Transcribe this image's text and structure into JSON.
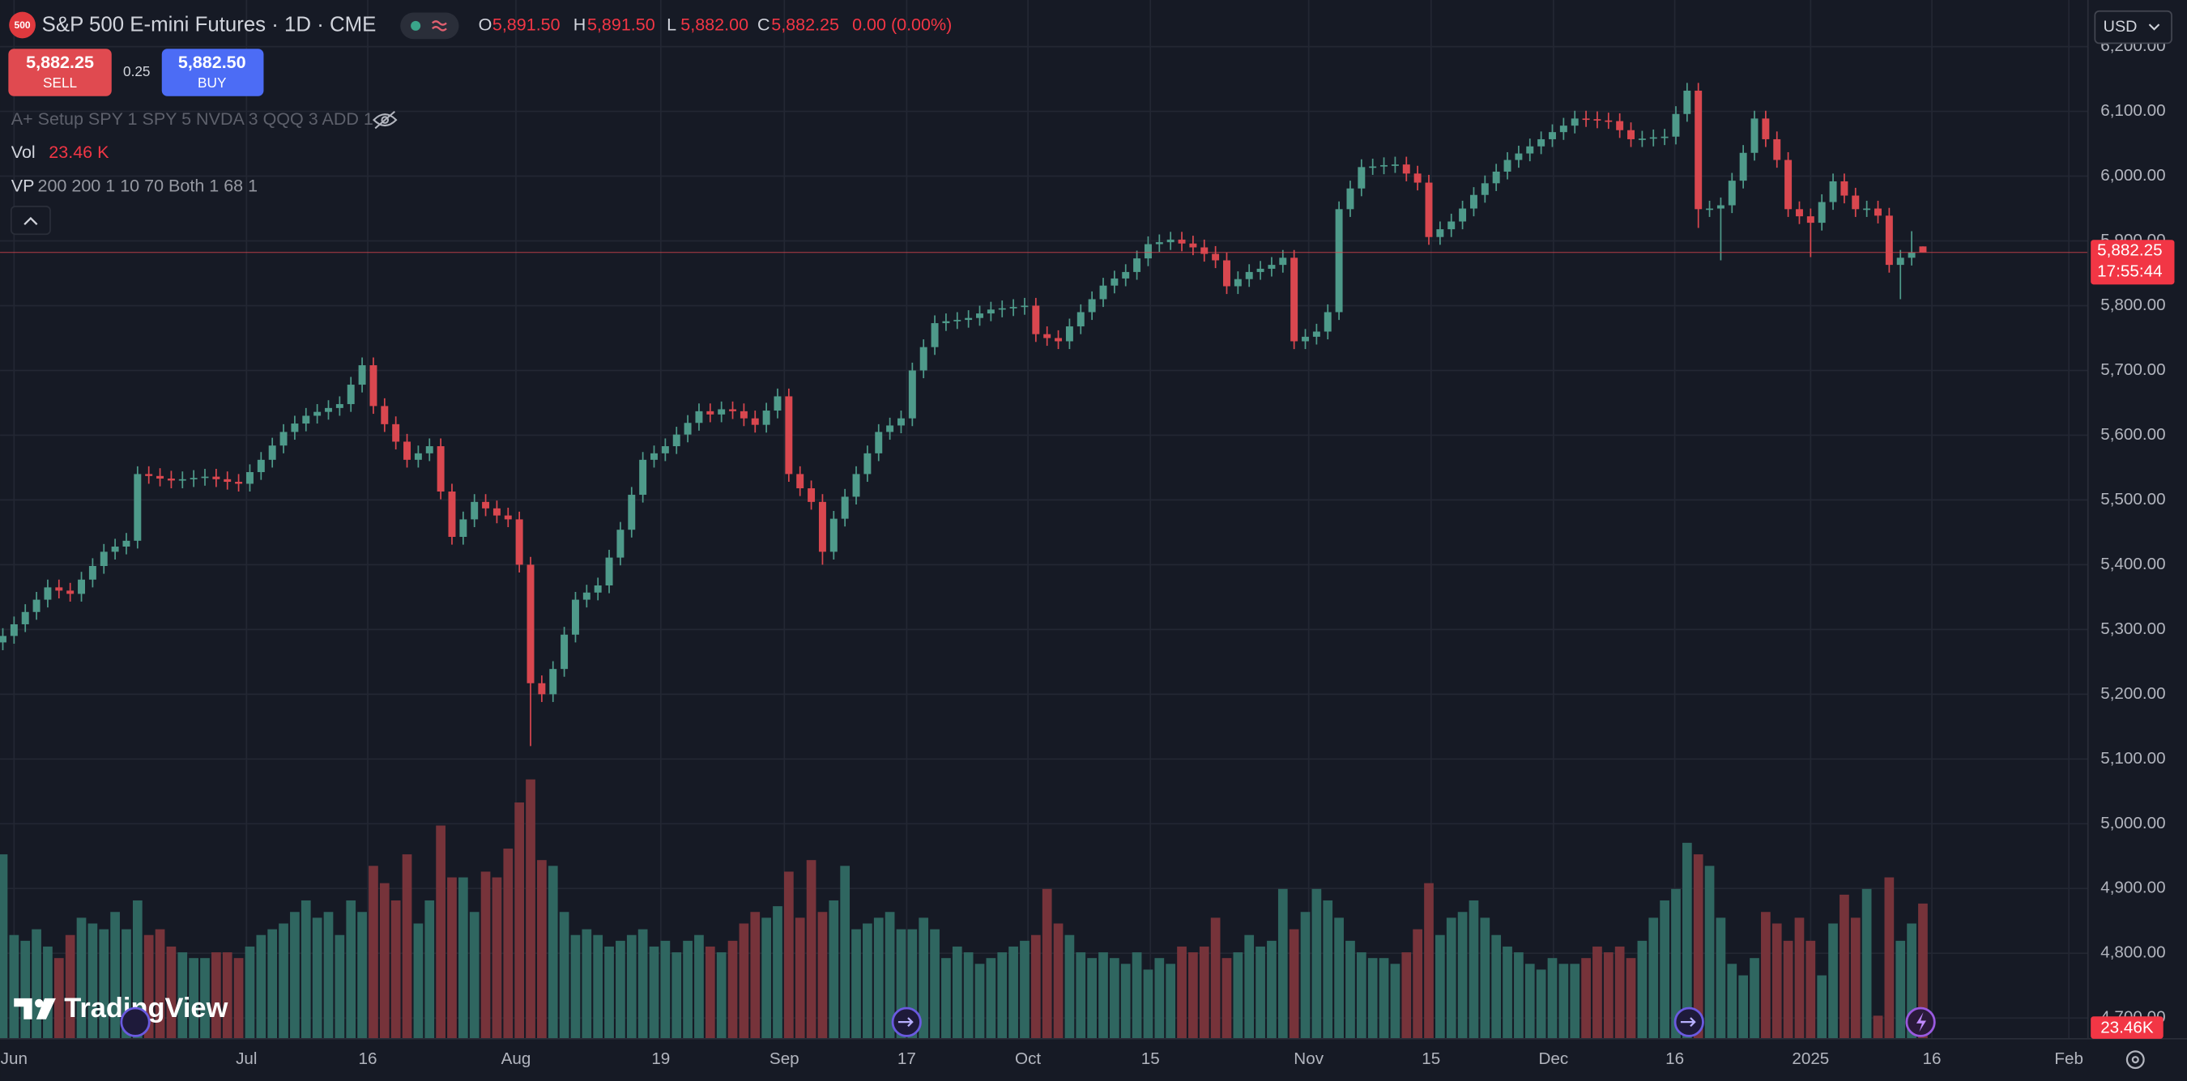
{
  "header": {
    "symbol_badge": "500",
    "title": "S&P 500 E-mini Futures · 1D · CME",
    "ohlc": [
      {
        "key": "O",
        "value": "5,891.50"
      },
      {
        "key": "H",
        "value": "5,891.50"
      },
      {
        "key": "L",
        "value": "5,882.00"
      },
      {
        "key": "C",
        "value": "5,882.25"
      }
    ],
    "change": "0.00 (0.00%)",
    "sell_price": "5,882.25",
    "sell_label": "SELL",
    "spread": "0.25",
    "buy_price": "5,882.50",
    "buy_label": "BUY",
    "currency": "USD"
  },
  "indicators": {
    "setup": "A+ Setup SPY 1 SPY 5 NVDA 3 QQQ 3 ADD 1",
    "vol_name": "Vol",
    "vol_value": "23.46 K",
    "vp_name": "VP",
    "vp_params": "200 200 1 10 70 Both 1 68 1"
  },
  "brand": "TradingView",
  "chart_data": {
    "type": "candlestick",
    "up_color": "#4e9a8a",
    "down_color": "#d9474f",
    "volume_up_color": "#2f6660",
    "volume_down_color": "#76333a",
    "grid": true,
    "ylim": [
      4668,
      6272
    ],
    "yticks": [
      {
        "value": 4700,
        "label": "4,700.00"
      },
      {
        "value": 4800,
        "label": "4,800.00"
      },
      {
        "value": 4900,
        "label": "4,900.00"
      },
      {
        "value": 5000,
        "label": "5,000.00"
      },
      {
        "value": 5100,
        "label": "5,100.00"
      },
      {
        "value": 5200,
        "label": "5,200.00"
      },
      {
        "value": 5300,
        "label": "5,300.00"
      },
      {
        "value": 5400,
        "label": "5,400.00"
      },
      {
        "value": 5500,
        "label": "5,500.00"
      },
      {
        "value": 5600,
        "label": "5,600.00"
      },
      {
        "value": 5700,
        "label": "5,700.00"
      },
      {
        "value": 5800,
        "label": "5,800.00"
      },
      {
        "value": 5900,
        "label": "5,900.00"
      },
      {
        "value": 6000,
        "label": "6,000.00"
      },
      {
        "value": 6100,
        "label": "6,100.00"
      },
      {
        "value": 6200,
        "label": "6,200.00"
      }
    ],
    "xlim": [
      -0.25,
      185.7
    ],
    "xticks": [
      {
        "value": 1.0,
        "label": "Jun"
      },
      {
        "value": 21.7,
        "label": "Jul"
      },
      {
        "value": 32.5,
        "label": "16"
      },
      {
        "value": 45.7,
        "label": "Aug"
      },
      {
        "value": 58.6,
        "label": "19"
      },
      {
        "value": 69.6,
        "label": "Sep"
      },
      {
        "value": 80.5,
        "label": "17"
      },
      {
        "value": 91.3,
        "label": "Oct"
      },
      {
        "value": 102.2,
        "label": "15"
      },
      {
        "value": 116.3,
        "label": "Nov"
      },
      {
        "value": 127.2,
        "label": "15"
      },
      {
        "value": 138.1,
        "label": "Dec"
      },
      {
        "value": 148.9,
        "label": "16"
      },
      {
        "value": 161.0,
        "label": "2025"
      },
      {
        "value": 171.8,
        "label": "16"
      },
      {
        "value": 184.0,
        "label": "Feb"
      }
    ],
    "volume_lim": [
      0,
      45
    ],
    "last_price_label": "5,882.25",
    "countdown": "17:55:44",
    "volume_label": "23.46K",
    "open": [
      5280,
      5290,
      5308,
      5327,
      5346,
      5365,
      5360,
      5355,
      5377,
      5398,
      5420,
      5428,
      5437,
      5540,
      5537,
      5533,
      5530,
      5532,
      5534,
      5536,
      5532,
      5528,
      5525,
      5543,
      5562,
      5584,
      5605,
      5618,
      5630,
      5636,
      5642,
      5648,
      5678,
      5708,
      5645,
      5617,
      5590,
      5562,
      5572,
      5583,
      5513,
      5443,
      5470,
      5497,
      5487,
      5476,
      5470,
      5400,
      5217,
      5200,
      5239,
      5292,
      5346,
      5357,
      5368,
      5411,
      5454,
      5508,
      5562,
      5572,
      5583,
      5601,
      5619,
      5637,
      5632,
      5640,
      5637,
      5626,
      5616,
      5638,
      5660,
      5540,
      5518,
      5497,
      5420,
      5471,
      5505,
      5540,
      5572,
      5605,
      5615,
      5626,
      5700,
      5736,
      5773,
      5776,
      5778,
      5781,
      5788,
      5794,
      5796,
      5798,
      5800,
      5756,
      5750,
      5745,
      5768,
      5790,
      5810,
      5831,
      5842,
      5852,
      5873,
      5895,
      5898,
      5902,
      5896,
      5890,
      5880,
      5870,
      5830,
      5841,
      5852,
      5857,
      5863,
      5874,
      5745,
      5752,
      5760,
      5790,
      5949,
      5981,
      6014,
      6015,
      6017,
      6018,
      6004,
      5990,
      5906,
      5918,
      5930,
      5950,
      5971,
      5989,
      6007,
      6025,
      6035,
      6046,
      6057,
      6068,
      6078,
      6089,
      6088,
      6086,
      6085,
      6071,
      6057,
      6058,
      6060,
      6061,
      6096,
      6132,
      5949,
      5950,
      5955,
      5993,
      6036,
      6089,
      6057,
      6025,
      5949,
      5938,
      5928,
      5960,
      5992,
      5970,
      5949,
      5950,
      5939,
      5863,
      5874,
      5891.5
    ],
    "high": [
      5302,
      5320,
      5339,
      5358,
      5377,
      5377,
      5372,
      5389,
      5410,
      5432,
      5440,
      5449,
      5552,
      5552,
      5549,
      5545,
      5544,
      5546,
      5548,
      5548,
      5544,
      5540,
      5555,
      5574,
      5596,
      5617,
      5630,
      5642,
      5648,
      5654,
      5660,
      5690,
      5720,
      5720,
      5657,
      5629,
      5602,
      5584,
      5595,
      5595,
      5525,
      5482,
      5509,
      5509,
      5499,
      5488,
      5482,
      5412,
      5229,
      5251,
      5304,
      5358,
      5369,
      5380,
      5423,
      5466,
      5520,
      5574,
      5584,
      5595,
      5613,
      5631,
      5649,
      5649,
      5652,
      5652,
      5649,
      5638,
      5650,
      5672,
      5672,
      5552,
      5530,
      5509,
      5483,
      5517,
      5552,
      5584,
      5617,
      5627,
      5638,
      5712,
      5748,
      5785,
      5788,
      5790,
      5793,
      5800,
      5806,
      5808,
      5810,
      5812,
      5812,
      5768,
      5762,
      5780,
      5802,
      5822,
      5843,
      5854,
      5864,
      5885,
      5907,
      5910,
      5914,
      5914,
      5908,
      5902,
      5892,
      5882,
      5853,
      5864,
      5869,
      5875,
      5886,
      5886,
      5764,
      5772,
      5802,
      5961,
      5993,
      6026,
      6027,
      6029,
      6030,
      6030,
      6016,
      6002,
      5930,
      5942,
      5962,
      5983,
      6001,
      6019,
      6037,
      6047,
      6058,
      6069,
      6080,
      6090,
      6101,
      6101,
      6100,
      6098,
      6097,
      6083,
      6070,
      6072,
      6073,
      6108,
      6144,
      6144,
      5962,
      5967,
      6005,
      6048,
      6101,
      6101,
      6069,
      6037,
      5961,
      5950,
      5972,
      6004,
      6004,
      5982,
      5962,
      5962,
      5951,
      5886,
      5915,
      5891.5
    ],
    "low": [
      5268,
      5278,
      5296,
      5315,
      5334,
      5348,
      5343,
      5343,
      5365,
      5386,
      5408,
      5416,
      5425,
      5525,
      5521,
      5518,
      5518,
      5520,
      5522,
      5520,
      5516,
      5513,
      5513,
      5531,
      5550,
      5572,
      5593,
      5606,
      5618,
      5624,
      5630,
      5636,
      5666,
      5633,
      5605,
      5578,
      5550,
      5550,
      5560,
      5501,
      5431,
      5431,
      5458,
      5475,
      5464,
      5458,
      5388,
      5120,
      5188,
      5188,
      5227,
      5280,
      5334,
      5345,
      5356,
      5399,
      5442,
      5496,
      5550,
      5560,
      5571,
      5589,
      5607,
      5620,
      5620,
      5625,
      5614,
      5604,
      5604,
      5626,
      5528,
      5506,
      5485,
      5400,
      5408,
      5459,
      5493,
      5528,
      5560,
      5593,
      5603,
      5614,
      5688,
      5724,
      5761,
      5764,
      5766,
      5769,
      5776,
      5782,
      5784,
      5786,
      5744,
      5738,
      5733,
      5733,
      5756,
      5778,
      5798,
      5819,
      5830,
      5840,
      5861,
      5883,
      5886,
      5884,
      5878,
      5868,
      5858,
      5818,
      5818,
      5829,
      5840,
      5845,
      5851,
      5733,
      5733,
      5740,
      5748,
      5778,
      5937,
      5969,
      6002,
      6003,
      6005,
      5992,
      5978,
      5894,
      5894,
      5906,
      5918,
      5938,
      5959,
      5977,
      5995,
      6013,
      6023,
      6034,
      6045,
      6056,
      6066,
      6076,
      6074,
      6073,
      6059,
      6045,
      6045,
      6046,
      6048,
      6049,
      6084,
      5920,
      5937,
      5870,
      5943,
      5981,
      6024,
      6045,
      6013,
      5937,
      5926,
      5875,
      5916,
      5948,
      5958,
      5937,
      5937,
      5927,
      5851,
      5810,
      5862,
      5882
    ],
    "close": [
      5290,
      5308,
      5327,
      5346,
      5365,
      5360,
      5355,
      5377,
      5398,
      5420,
      5428,
      5437,
      5540,
      5537,
      5533,
      5530,
      5532,
      5534,
      5536,
      5532,
      5528,
      5525,
      5543,
      5562,
      5584,
      5605,
      5618,
      5630,
      5636,
      5642,
      5648,
      5678,
      5708,
      5645,
      5617,
      5590,
      5562,
      5572,
      5583,
      5513,
      5443,
      5470,
      5497,
      5487,
      5476,
      5470,
      5400,
      5217,
      5200,
      5239,
      5292,
      5346,
      5357,
      5368,
      5411,
      5454,
      5508,
      5562,
      5572,
      5583,
      5601,
      5619,
      5637,
      5632,
      5640,
      5637,
      5626,
      5616,
      5638,
      5660,
      5540,
      5518,
      5497,
      5420,
      5471,
      5505,
      5540,
      5572,
      5605,
      5615,
      5626,
      5700,
      5736,
      5773,
      5776,
      5778,
      5781,
      5788,
      5794,
      5796,
      5798,
      5800,
      5756,
      5750,
      5745,
      5768,
      5790,
      5810,
      5831,
      5842,
      5852,
      5873,
      5895,
      5898,
      5902,
      5896,
      5890,
      5880,
      5870,
      5830,
      5841,
      5852,
      5857,
      5863,
      5874,
      5745,
      5752,
      5760,
      5790,
      5949,
      5981,
      6014,
      6015,
      6017,
      6018,
      6004,
      5990,
      5906,
      5918,
      5930,
      5950,
      5971,
      5989,
      6007,
      6025,
      6035,
      6046,
      6057,
      6068,
      6078,
      6089,
      6088,
      6086,
      6085,
      6071,
      6057,
      6058,
      6060,
      6061,
      6096,
      6132,
      5949,
      5950,
      5955,
      5993,
      6036,
      6089,
      6057,
      6025,
      5949,
      5938,
      5928,
      5960,
      5992,
      5970,
      5949,
      5950,
      5939,
      5863,
      5874,
      5882,
      5882.25
    ],
    "volume": [
      32,
      18,
      17,
      19,
      16,
      14,
      18,
      21,
      20,
      19,
      22,
      19,
      24,
      18,
      19,
      16,
      15,
      14,
      14,
      15,
      15,
      14,
      16,
      18,
      19,
      20,
      22,
      24,
      21,
      22,
      18,
      24,
      22,
      30,
      27,
      24,
      32,
      20,
      24,
      37,
      28,
      28,
      22,
      29,
      28,
      33,
      41,
      45,
      31,
      30,
      22,
      18,
      19,
      18,
      16,
      17,
      18,
      19,
      16,
      17,
      15,
      17,
      18,
      16,
      15,
      17,
      20,
      22,
      21,
      23,
      29,
      21,
      31,
      22,
      24,
      30,
      19,
      20,
      21,
      22,
      19,
      19,
      21,
      19,
      14,
      16,
      15,
      13,
      14,
      15,
      16,
      17,
      18,
      26,
      20,
      18,
      15,
      14,
      15,
      14,
      13,
      15,
      12,
      14,
      13,
      16,
      15,
      16,
      21,
      14,
      15,
      18,
      16,
      17,
      26,
      19,
      22,
      26,
      24,
      21,
      17,
      15,
      14,
      14,
      13,
      15,
      19,
      27,
      18,
      21,
      22,
      24,
      21,
      18,
      16,
      15,
      13,
      12,
      14,
      13,
      13,
      14,
      16,
      15,
      16,
      14,
      17,
      21,
      24,
      26,
      34,
      32,
      30,
      21,
      13,
      11,
      14,
      22,
      20,
      17,
      21,
      17,
      11,
      20,
      25,
      21,
      26,
      4,
      28,
      17,
      20,
      23.46
    ]
  }
}
